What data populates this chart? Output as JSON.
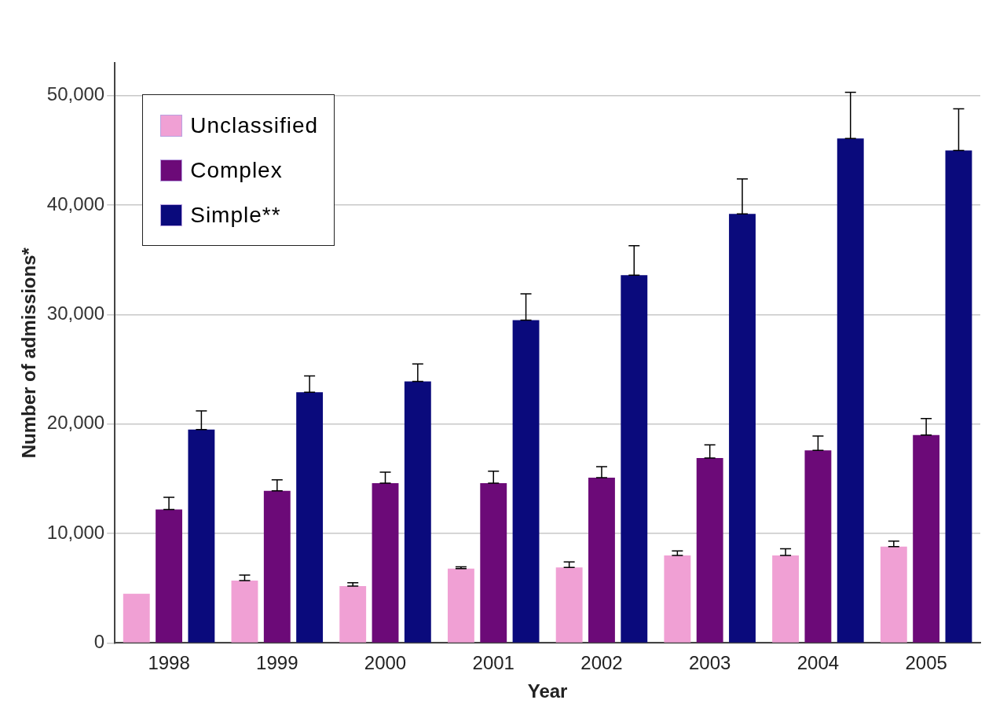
{
  "chart_data": {
    "type": "bar",
    "xlabel": "Year",
    "ylabel": "Number of admissions*",
    "categories": [
      "1998",
      "1999",
      "2000",
      "2001",
      "2002",
      "2003",
      "2004",
      "2005"
    ],
    "series": [
      {
        "name": "Unclassified",
        "color": "#f0a0d4",
        "values": [
          4500,
          5700,
          5200,
          6800,
          6900,
          8000,
          8000,
          8800
        ],
        "errors": [
          null,
          [
            5700,
            6200
          ],
          [
            5200,
            5500
          ],
          [
            6800,
            6950
          ],
          [
            6900,
            7400
          ],
          [
            8000,
            8400
          ],
          [
            8000,
            8600
          ],
          [
            8800,
            9300
          ]
        ]
      },
      {
        "name": "Complex",
        "color": "#6c0a78",
        "values": [
          12200,
          13900,
          14600,
          14600,
          15100,
          16900,
          17600,
          19000
        ],
        "errors": [
          [
            12200,
            13300
          ],
          [
            13900,
            14900
          ],
          [
            14600,
            15600
          ],
          [
            14600,
            15700
          ],
          [
            15100,
            16100
          ],
          [
            16900,
            18100
          ],
          [
            17600,
            18900
          ],
          [
            19000,
            20500
          ]
        ]
      },
      {
        "name": "Simple**",
        "color": "#0a0a7c",
        "values": [
          19500,
          22900,
          23900,
          29500,
          33600,
          39200,
          46100,
          45000
        ],
        "errors": [
          [
            19500,
            21200
          ],
          [
            22900,
            24400
          ],
          [
            23900,
            25500
          ],
          [
            29500,
            31900
          ],
          [
            33600,
            36300
          ],
          [
            39200,
            42400
          ],
          [
            46100,
            50300
          ],
          [
            45000,
            48800
          ]
        ]
      }
    ],
    "ylim": [
      0,
      53000
    ],
    "yticks": [
      {
        "value": 0,
        "label": "0"
      },
      {
        "value": 10000,
        "label": "10,000"
      },
      {
        "value": 20000,
        "label": "20,000"
      },
      {
        "value": 30000,
        "label": "30,000"
      },
      {
        "value": 40000,
        "label": "40,000"
      },
      {
        "value": 50000,
        "label": "50,000"
      }
    ],
    "grid": "y",
    "legend": "top left"
  }
}
